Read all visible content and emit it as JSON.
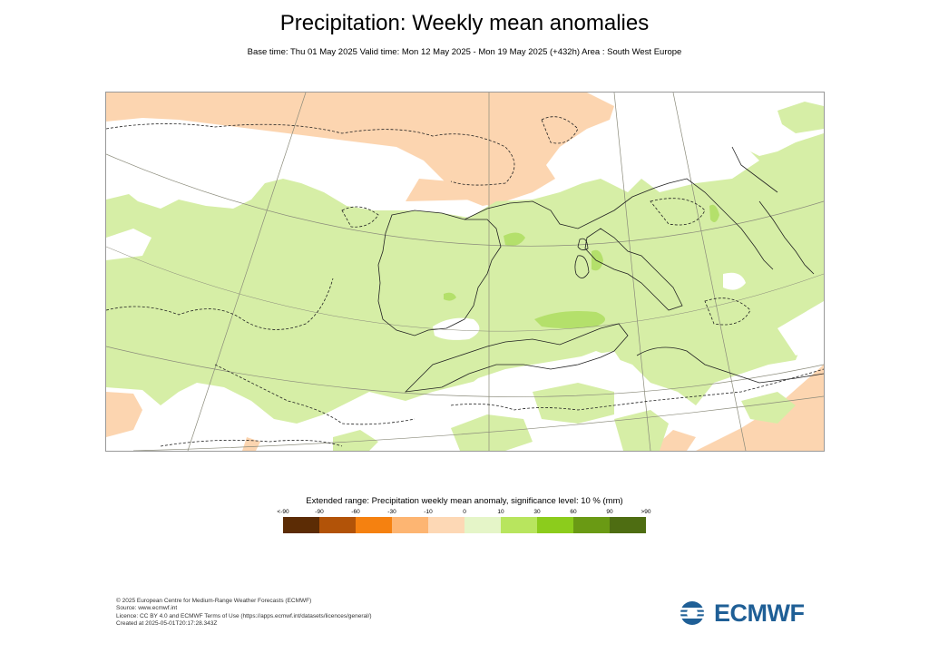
{
  "header": {
    "title": "Precipitation: Weekly mean anomalies",
    "subtitle": "Base time: Thu 01 May 2025 Valid time: Mon 12 May 2025 - Mon 19 May 2025 (+432h) Area : South West Europe"
  },
  "map": {
    "region": "South West Europe",
    "projection_gridlines": true,
    "colors": {
      "positive_10_30": "#d6eea6",
      "positive_30_60": "#b4e06b",
      "negative_0_10": "#fcd5b0",
      "coastline": "#222222",
      "significance_contour": "#222222",
      "gridline": "#8a8a7a"
    }
  },
  "legend": {
    "title": "Extended range: Precipitation weekly mean anomaly, significance level: 10 % (mm)",
    "ticks": [
      "<-90",
      "-90",
      "-60",
      "-30",
      "-10",
      "0",
      "10",
      "30",
      "60",
      "90",
      ">90"
    ],
    "colors": [
      "#5c2c05",
      "#b25308",
      "#f58110",
      "#fdb572",
      "#fdd8b5",
      "#e5f5c8",
      "#b8e55e",
      "#8ccc1c",
      "#6a9a14",
      "#4e6d12"
    ]
  },
  "footer": {
    "lines": [
      "© 2025 European Centre for Medium-Range Weather Forecasts (ECMWF)",
      "Source: www.ecmwf.int",
      "Licence: CC BY 4.0 and ECMWF Terms of Use (https://apps.ecmwf.int/datasets/licences/general/)",
      "Created at 2025-05-01T20:17:28.343Z"
    ],
    "logo_text": "ECMWF"
  }
}
